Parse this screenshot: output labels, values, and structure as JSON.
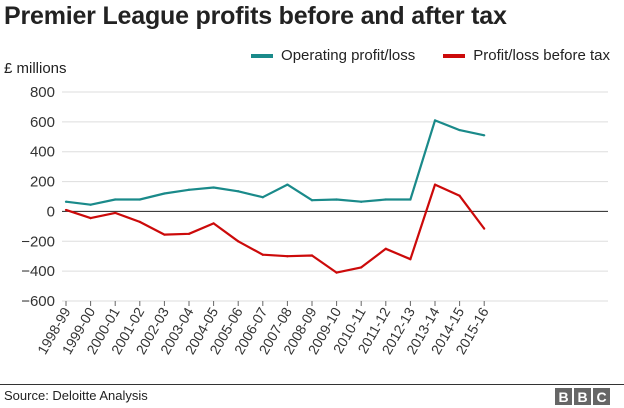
{
  "chart_data": {
    "type": "line",
    "title": "Premier League profits before and after tax",
    "ylabel": "£ millions",
    "ylim": [
      -600,
      800
    ],
    "yticks": [
      800,
      600,
      400,
      200,
      0,
      -200,
      -400,
      -600
    ],
    "categories": [
      "1998-99",
      "1999-00",
      "2000-01",
      "2001-02",
      "2002-03",
      "2003-04",
      "2004-05",
      "2005-06",
      "2006-07",
      "2007-08",
      "2008-09",
      "2009-10",
      "2010-11",
      "2011-12",
      "2012-13",
      "2013-14",
      "2014-15",
      "2015-16"
    ],
    "series": [
      {
        "name": "Operating profit/loss",
        "color": "#1a8a8a",
        "values": [
          65,
          45,
          80,
          80,
          120,
          145,
          160,
          135,
          95,
          180,
          75,
          80,
          65,
          80,
          80,
          610,
          545,
          510
        ]
      },
      {
        "name": "Profit/loss before tax",
        "color": "#cc0a0a",
        "values": [
          10,
          -45,
          -10,
          -70,
          -155,
          -150,
          -80,
          -200,
          -290,
          -300,
          -295,
          -410,
          -375,
          -250,
          -320,
          180,
          105,
          -115
        ]
      }
    ],
    "grid": true,
    "legend_position": "top-right"
  },
  "footer": {
    "source": "Source: Deloitte Analysis",
    "logo_letters": [
      "B",
      "B",
      "C"
    ]
  }
}
